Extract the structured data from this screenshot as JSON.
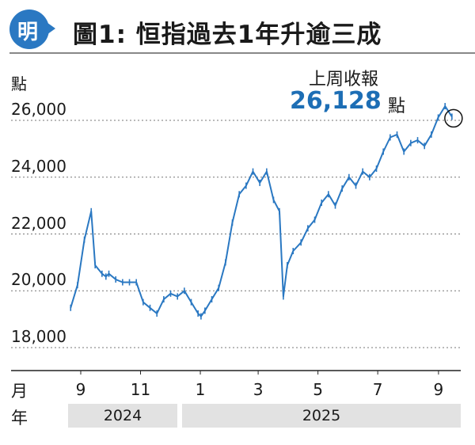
{
  "header": {
    "logo_text": "明",
    "title": "圖1: 恒指過去1年升逾三成"
  },
  "annotation": {
    "label": "上周收報",
    "value": "26,128",
    "unit": "點"
  },
  "axis": {
    "y_unit": "點",
    "month_row_label": "月",
    "year_row_label": "年",
    "years": [
      "2024",
      "2025"
    ]
  },
  "colors": {
    "series": "#2a78c2",
    "accent_value": "#1d6eb5",
    "logo": "#2a78c2",
    "year_band": "#e2e2e2"
  },
  "chart_data": {
    "type": "line",
    "title": "圖1: 恒指過去1年升逾三成",
    "ylabel": "點",
    "ylim": [
      17500,
      27000
    ],
    "yticks": [
      18000,
      20000,
      22000,
      24000,
      26000
    ],
    "ytick_labels": [
      "18,000",
      "20,000",
      "22,000",
      "24,000",
      "26,000"
    ],
    "xlim": [
      "2024-09-01",
      "2025-10-05"
    ],
    "xticks": [
      "9",
      "11",
      "1",
      "3",
      "5",
      "7",
      "9"
    ],
    "gridlines": "dotted horizontal",
    "series": [
      {
        "x": [
          "2024-09-02",
          "2024-09-09",
          "2024-09-16",
          "2024-09-23",
          "2024-09-27",
          "2024-10-04",
          "2024-10-08",
          "2024-10-11",
          "2024-10-18",
          "2024-10-25",
          "2024-11-01",
          "2024-11-08",
          "2024-11-15",
          "2024-11-22",
          "2024-11-29",
          "2024-12-06",
          "2024-12-13",
          "2024-12-20",
          "2024-12-27",
          "2025-01-03",
          "2025-01-10",
          "2025-01-13",
          "2025-01-17",
          "2025-01-24",
          "2025-01-31",
          "2025-02-07",
          "2025-02-14",
          "2025-02-21",
          "2025-02-28",
          "2025-03-07",
          "2025-03-14",
          "2025-03-21",
          "2025-03-28",
          "2025-04-03",
          "2025-04-07",
          "2025-04-11",
          "2025-04-17",
          "2025-04-25",
          "2025-05-02",
          "2025-05-09",
          "2025-05-16",
          "2025-05-23",
          "2025-05-30",
          "2025-06-06",
          "2025-06-13",
          "2025-06-20",
          "2025-06-27",
          "2025-07-04",
          "2025-07-11",
          "2025-07-18",
          "2025-07-25",
          "2025-08-01",
          "2025-08-08",
          "2025-08-15",
          "2025-08-22",
          "2025-08-29",
          "2025-09-05",
          "2025-09-12",
          "2025-09-19",
          "2025-09-26"
        ],
        "values": [
          19400,
          20200,
          21800,
          22800,
          20900,
          20600,
          20500,
          20600,
          20400,
          20300,
          20300,
          20300,
          19600,
          19400,
          19200,
          19700,
          19900,
          19800,
          20000,
          19600,
          19200,
          19100,
          19300,
          19700,
          20100,
          21000,
          22400,
          23400,
          23700,
          24200,
          23800,
          24200,
          23200,
          22800,
          19800,
          20900,
          21400,
          21700,
          22200,
          22500,
          23100,
          23400,
          23000,
          23600,
          24000,
          23700,
          24200,
          24000,
          24300,
          24900,
          25400,
          25500,
          24900,
          25200,
          25300,
          25100,
          25500,
          26100,
          26500,
          26128
        ]
      }
    ]
  }
}
